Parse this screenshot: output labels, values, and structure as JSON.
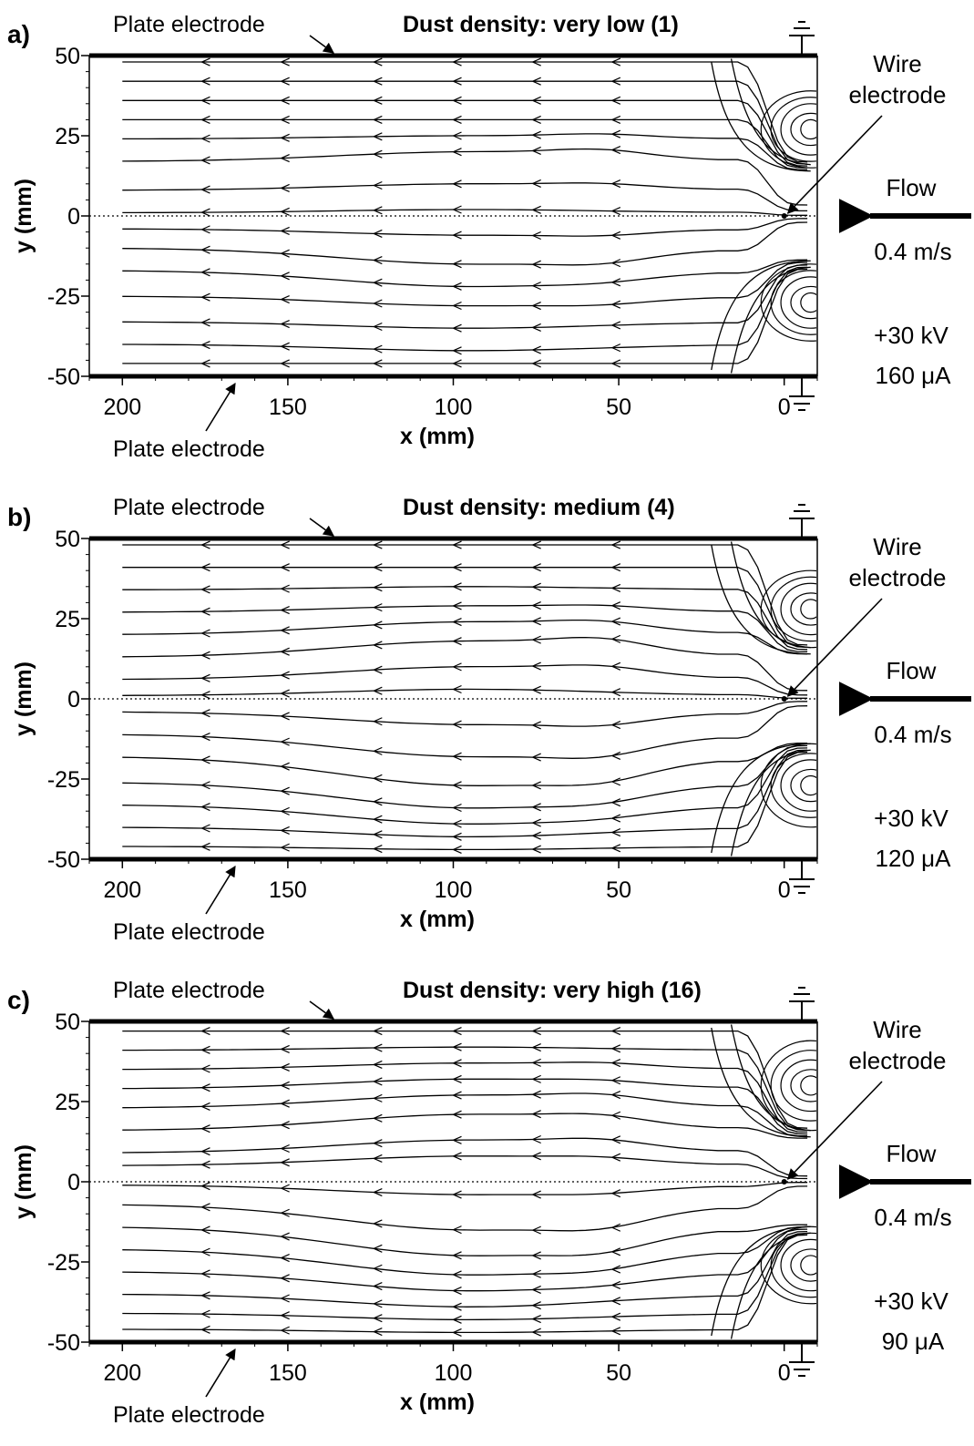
{
  "figure": {
    "colors": {
      "ink": "#000000",
      "background": "#ffffff"
    },
    "annotations": {
      "plate_electrode": "Plate electrode",
      "wire_label_line1": "Wire",
      "wire_label_line2": "electrode",
      "flow_label": "Flow",
      "flow_speed": "0.4 m/s"
    }
  },
  "chart_data": [
    {
      "type": "streamline",
      "panel": "a)",
      "title": "Dust density:  very low (1)",
      "xlabel": "x (mm)",
      "ylabel": "y (mm)",
      "xlim": [
        210,
        -10
      ],
      "ylim": [
        -50,
        50
      ],
      "x_ticks": [
        200,
        150,
        100,
        50,
        0
      ],
      "y_ticks": [
        50,
        25,
        0,
        -25,
        -50
      ],
      "voltage": "+30 kV",
      "current": "160 μA",
      "wire_position": [
        0,
        0
      ],
      "centerline_y": 0,
      "vortices": [
        {
          "x": -8,
          "y": 27,
          "rx": [
            3,
            6,
            9,
            12,
            15
          ],
          "ry": [
            3,
            5,
            8,
            10,
            12
          ]
        },
        {
          "x": -8,
          "y": -27,
          "rx": [
            3,
            6,
            9,
            12,
            15
          ],
          "ry": [
            3,
            5,
            8,
            10,
            12
          ]
        }
      ],
      "streamlines": [
        {
          "y0": 48,
          "bulge": 0,
          "hump": 0,
          "turn": -1
        },
        {
          "y0": 42,
          "bulge": 0,
          "hump": 0,
          "turn": -1
        },
        {
          "y0": 36,
          "bulge": 0,
          "hump": 0,
          "turn": -1
        },
        {
          "y0": 30,
          "bulge": 0,
          "hump": 0,
          "turn": -1
        },
        {
          "y0": 24,
          "bulge": 1,
          "hump": 1,
          "turn": -1
        },
        {
          "y0": 17,
          "bulge": 3,
          "hump": 2,
          "turn": 0
        },
        {
          "y0": 8,
          "bulge": 2,
          "hump": 1,
          "turn": 0
        },
        {
          "y0": 1,
          "bulge": 1,
          "hump": 0,
          "turn": 0
        },
        {
          "y0": -4,
          "bulge": -2,
          "hump": -1,
          "turn": 0
        },
        {
          "y0": -10,
          "bulge": -5,
          "hump": -2,
          "turn": 0
        },
        {
          "y0": -17,
          "bulge": -5,
          "hump": -1,
          "turn": 1
        },
        {
          "y0": -25,
          "bulge": -3,
          "hump": -1,
          "turn": 1
        },
        {
          "y0": -33,
          "bulge": -2,
          "hump": 0,
          "turn": 1
        },
        {
          "y0": -40,
          "bulge": -2,
          "hump": 0,
          "turn": 1
        },
        {
          "y0": -46,
          "bulge": 0,
          "hump": 0,
          "turn": 1
        }
      ]
    },
    {
      "type": "streamline",
      "panel": "b)",
      "title": "Dust density:  medium (4)",
      "xlabel": "x (mm)",
      "ylabel": "y (mm)",
      "xlim": [
        210,
        -10
      ],
      "ylim": [
        -50,
        50
      ],
      "x_ticks": [
        200,
        150,
        100,
        50,
        0
      ],
      "y_ticks": [
        50,
        25,
        0,
        -25,
        -50
      ],
      "voltage": "+30 kV",
      "current": "120 μA",
      "wire_position": [
        0,
        0
      ],
      "centerline_y": 0,
      "vortices": [
        {
          "x": -8,
          "y": 28,
          "rx": [
            3,
            6,
            9,
            12,
            15
          ],
          "ry": [
            3,
            5,
            8,
            10,
            12
          ]
        },
        {
          "x": -8,
          "y": -27,
          "rx": [
            3,
            6,
            9,
            12,
            15
          ],
          "ry": [
            3,
            5,
            8,
            10,
            13
          ]
        }
      ],
      "streamlines": [
        {
          "y0": 48,
          "bulge": 0,
          "hump": 0,
          "turn": -1
        },
        {
          "y0": 41,
          "bulge": 0,
          "hump": 0,
          "turn": -1
        },
        {
          "y0": 34,
          "bulge": 1,
          "hump": 0,
          "turn": -1
        },
        {
          "y0": 27,
          "bulge": 2,
          "hump": 1,
          "turn": -1
        },
        {
          "y0": 20,
          "bulge": 4,
          "hump": 2,
          "turn": -1
        },
        {
          "y0": 13,
          "bulge": 5,
          "hump": 3,
          "turn": 0
        },
        {
          "y0": 6,
          "bulge": 4,
          "hump": 2,
          "turn": 0
        },
        {
          "y0": 1,
          "bulge": 2,
          "hump": 0,
          "turn": 0
        },
        {
          "y0": -4,
          "bulge": -4,
          "hump": -2,
          "turn": 0
        },
        {
          "y0": -11,
          "bulge": -7,
          "hump": -3,
          "turn": 0
        },
        {
          "y0": -18,
          "bulge": -9,
          "hump": -3,
          "turn": 1
        },
        {
          "y0": -26,
          "bulge": -8,
          "hump": -2,
          "turn": 1
        },
        {
          "y0": -33,
          "bulge": -6,
          "hump": -1,
          "turn": 1
        },
        {
          "y0": -40,
          "bulge": -3,
          "hump": 0,
          "turn": 1
        },
        {
          "y0": -46,
          "bulge": -1,
          "hump": 0,
          "turn": 1
        }
      ]
    },
    {
      "type": "streamline",
      "panel": "c)",
      "title": "Dust density:  very high (16)",
      "xlabel": "x (mm)",
      "ylabel": "y (mm)",
      "xlim": [
        210,
        -10
      ],
      "ylim": [
        -50,
        50
      ],
      "x_ticks": [
        200,
        150,
        100,
        50,
        0
      ],
      "y_ticks": [
        50,
        25,
        0,
        -25,
        -50
      ],
      "voltage": "+30 kV",
      "current": "90 μA",
      "wire_position": [
        0,
        0
      ],
      "centerline_y": 0,
      "vortices": [
        {
          "x": -8,
          "y": 30,
          "rx": [
            3,
            6,
            9,
            12,
            15
          ],
          "ry": [
            3,
            5,
            8,
            11,
            14
          ]
        },
        {
          "x": -8,
          "y": -26,
          "rx": [
            3,
            6,
            9,
            12,
            15
          ],
          "ry": [
            3,
            5,
            8,
            10,
            12
          ]
        }
      ],
      "streamlines": [
        {
          "y0": 47,
          "bulge": 0,
          "hump": 0,
          "turn": -1
        },
        {
          "y0": 41,
          "bulge": 1,
          "hump": 0,
          "turn": -1
        },
        {
          "y0": 35,
          "bulge": 2,
          "hump": 1,
          "turn": -1
        },
        {
          "y0": 29,
          "bulge": 3,
          "hump": 1,
          "turn": -1
        },
        {
          "y0": 23,
          "bulge": 4,
          "hump": 2,
          "turn": -1
        },
        {
          "y0": 16,
          "bulge": 5,
          "hump": 2,
          "turn": -1
        },
        {
          "y0": 9,
          "bulge": 4,
          "hump": 2,
          "turn": 0
        },
        {
          "y0": 5,
          "bulge": 3,
          "hump": 1,
          "turn": 0
        },
        {
          "y0": -1,
          "bulge": -3,
          "hump": -1,
          "turn": 0
        },
        {
          "y0": -7,
          "bulge": -8,
          "hump": -3,
          "turn": 0
        },
        {
          "y0": -14,
          "bulge": -9,
          "hump": -3,
          "turn": 1
        },
        {
          "y0": -21,
          "bulge": -8,
          "hump": -2,
          "turn": 1
        },
        {
          "y0": -28,
          "bulge": -6,
          "hump": -1,
          "turn": 1
        },
        {
          "y0": -35,
          "bulge": -4,
          "hump": 0,
          "turn": 1
        },
        {
          "y0": -41,
          "bulge": -2,
          "hump": 0,
          "turn": 1
        },
        {
          "y0": -46,
          "bulge": -1,
          "hump": 0,
          "turn": 1
        }
      ]
    }
  ]
}
